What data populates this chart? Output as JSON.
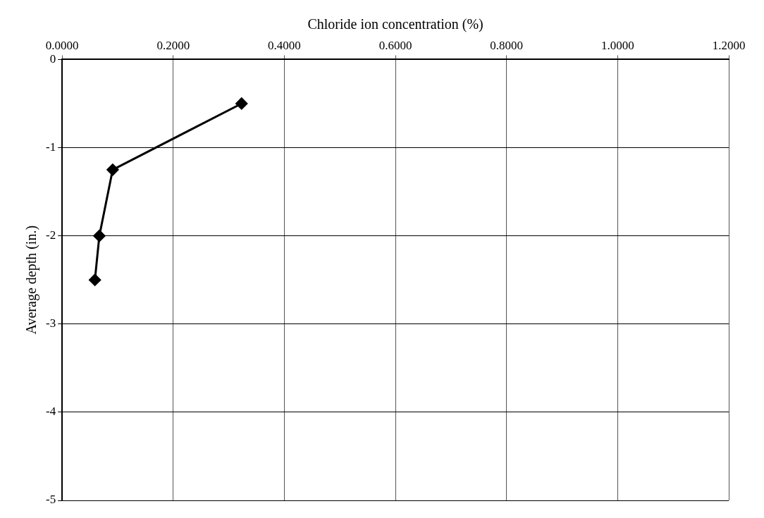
{
  "chart_data": {
    "type": "line",
    "xlabel": "Chloride ion concentration (%)",
    "ylabel": "Average depth (in.)",
    "series": [
      {
        "color": "#000000",
        "x": [
          0.323,
          0.091,
          0.067,
          0.059
        ],
        "values": [
          -0.5,
          -1.25,
          -2,
          -2.5
        ]
      }
    ],
    "xlim": [
      0,
      1.2
    ],
    "xticks": [
      {
        "value": 0,
        "label": "0.0000"
      },
      {
        "value": 0.2,
        "label": "0.2000"
      },
      {
        "value": 0.4,
        "label": "0.4000"
      },
      {
        "value": 0.6,
        "label": "0.6000"
      },
      {
        "value": 0.8,
        "label": "0.8000"
      },
      {
        "value": 1,
        "label": "1.0000"
      },
      {
        "value": 1.2,
        "label": "1.2000"
      }
    ],
    "ylim": [
      -5,
      0
    ],
    "yticks": [
      0,
      -1,
      -2,
      -3,
      -4,
      -5
    ],
    "grid": true,
    "marker": "diamond",
    "line_style": "solid",
    "legend": false
  }
}
